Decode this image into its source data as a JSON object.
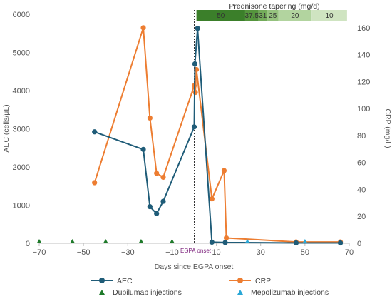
{
  "chart_data": {
    "type": "line",
    "xlabel": "Days since EGPA onset",
    "ylabel_left": "AEC (cells/μL)",
    "ylabel_right": "CRP (mg/L)",
    "xlim": [
      -70,
      70
    ],
    "ylim_left": [
      0,
      6000
    ],
    "ylim_right": [
      0,
      170
    ],
    "x_ticks": [
      -70,
      -50,
      -30,
      -10,
      10,
      30,
      50,
      70
    ],
    "x_tick_labels": [
      "−70",
      "−50",
      "−30",
      "−10",
      "10",
      "30",
      "50",
      "70"
    ],
    "y_left_ticks": [
      0,
      1000,
      2000,
      3000,
      4000,
      5000,
      6000
    ],
    "y_left_tick_labels": [
      "0",
      "1000",
      "2000",
      "3000",
      "4000",
      "5000",
      "6000"
    ],
    "y_right_ticks": [
      0,
      20,
      40,
      60,
      80,
      100,
      120,
      140,
      160
    ],
    "y_right_tick_labels": [
      "0",
      "20",
      "40",
      "60",
      "80",
      "100",
      "120",
      "140",
      "160"
    ],
    "grid": false,
    "legend_position": "bottom",
    "series": [
      {
        "name": "AEC",
        "axis": "left",
        "color": "#1f5c78",
        "marker": "circle",
        "x": [
          -45,
          -23,
          -20,
          -17,
          -14,
          0,
          0.3,
          1.5,
          8,
          14,
          46,
          66
        ],
        "y": [
          2920,
          2460,
          960,
          780,
          1100,
          3050,
          4700,
          5630,
          30,
          20,
          10,
          10
        ]
      },
      {
        "name": "CRP",
        "axis": "left",
        "color": "#ed7d31",
        "marker": "circle",
        "x": [
          -45,
          -23,
          -20,
          -17,
          -14,
          0,
          0.5,
          1,
          8,
          13.5,
          14.5,
          46,
          66
        ],
        "y": [
          45,
          160,
          93,
          52,
          49,
          117,
          112,
          129,
          33,
          54,
          4,
          1,
          1
        ]
      }
    ],
    "annotations": {
      "onset_x": 0,
      "onset_label": "EGPA onset",
      "dupilumab_label": "Dupilumab injections",
      "dupilumab_color": "#1e7a2a",
      "dupilumab_days": [
        -70,
        -55,
        -40,
        -24,
        -10
      ],
      "mepolizumab_label": "Mepolizumab injections",
      "mepolizumab_color": "#2aa7d6",
      "mepolizumab_days": [
        24,
        50
      ]
    },
    "prednisone": {
      "title": "Prednisone tapering (mg/d)",
      "segments": [
        {
          "label": "50",
          "from": 1,
          "to": 23,
          "color": "#3b7f2a"
        },
        {
          "label": "37.5",
          "from": 23,
          "to": 29,
          "color": "#55953d"
        },
        {
          "label": "31",
          "from": 29,
          "to": 33,
          "color": "#73ab5a"
        },
        {
          "label": "25",
          "from": 33,
          "to": 38,
          "color": "#95c27e"
        },
        {
          "label": "20",
          "from": 38,
          "to": 53,
          "color": "#b2d49f"
        },
        {
          "label": "10",
          "from": 53,
          "to": 69,
          "color": "#cfe4c1"
        }
      ]
    }
  }
}
